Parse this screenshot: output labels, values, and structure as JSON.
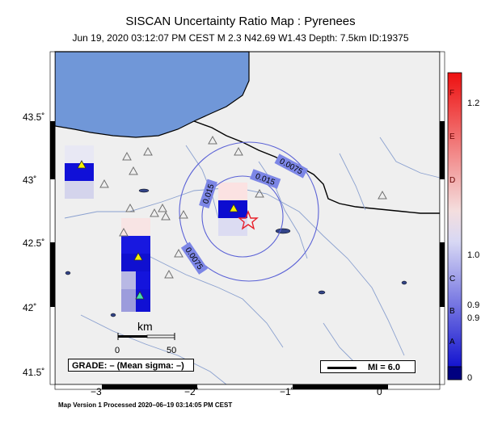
{
  "header": {
    "title": "SISCAN Uncertainty Ratio Map : Pyrenees",
    "subtitle": "Jun 19, 2020 03:12:07 PM CEST   M 2.3   N42.69 W1.43   Depth: 7.5km   ID:19375"
  },
  "axes": {
    "lat_labels": [
      "43.5˚",
      "43˚",
      "42.5˚",
      "42˚",
      "41.5˚"
    ],
    "lon_labels": [
      "−3˚",
      "−2˚",
      "−1˚",
      "0˚"
    ]
  },
  "contours": [
    "0.0075",
    "0.015",
    "0.015",
    "0.0075"
  ],
  "scale": {
    "unit": "km",
    "ticks": [
      "0",
      "50"
    ]
  },
  "grade": "GRADE: – (Mean sigma: –)",
  "legend": {
    "mi_label": "MI = 6.0"
  },
  "colorbar": {
    "ticks": [
      "1.2",
      "1.0",
      "0.9",
      "0.9",
      "0"
    ],
    "letters": [
      "F",
      "E",
      "D",
      "C",
      "B",
      "A"
    ]
  },
  "footer": "Map Version 1 Processed 2020–06–19 03:14:05 PM CEST",
  "colors": {
    "sea": "#7097d8",
    "land": "#efefef",
    "river": "#7d93c6",
    "epicenter": "#e8202a"
  }
}
